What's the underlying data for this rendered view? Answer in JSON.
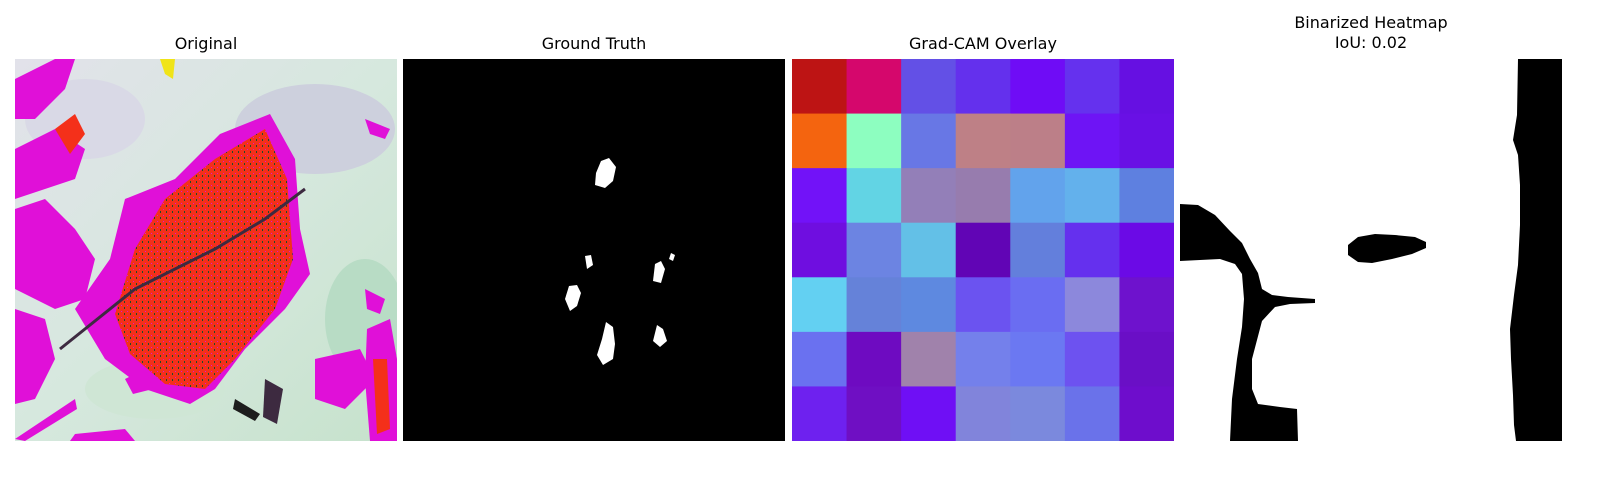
{
  "panels": [
    {
      "title": "Original"
    },
    {
      "title": "Ground Truth"
    },
    {
      "title": "Grad-CAM Overlay"
    },
    {
      "title": "Binarized Heatmap",
      "subtitle": "IoU: 0.02"
    }
  ],
  "gradcam_grid": [
    [
      "#bd1414",
      "#d5076c",
      "#6350e6",
      "#6430ed",
      "#6f0cf6",
      "#6531ee",
      "#6610e2"
    ],
    [
      "#f4640f",
      "#8dfec0",
      "#6877e5",
      "#be8086",
      "#bc7f88",
      "#6e14f5",
      "#6910e5"
    ],
    [
      "#7212f8",
      "#62d4e4",
      "#937fb8",
      "#977cae",
      "#62a3ec",
      "#63b1ec",
      "#5e80e0"
    ],
    [
      "#6f0ee0",
      "#6c84e2",
      "#63c0e7",
      "#6105b5",
      "#637fdc",
      "#6530ee",
      "#6b0ae6"
    ],
    [
      "#63d0f2",
      "#6582d9",
      "#5e89e0",
      "#6b53f0",
      "#6a6df2",
      "#8c88dc",
      "#6e12cd"
    ],
    [
      "#6a71f0",
      "#6e0bc1",
      "#a082ab",
      "#7480eb",
      "#6b78f2",
      "#6d52f0",
      "#6a0fc6"
    ],
    [
      "#6e21ef",
      "#6f0fc3",
      "#6f0ff5",
      "#8184db",
      "#7b89dd",
      "#6a72ea",
      "#6e0dcc"
    ]
  ]
}
